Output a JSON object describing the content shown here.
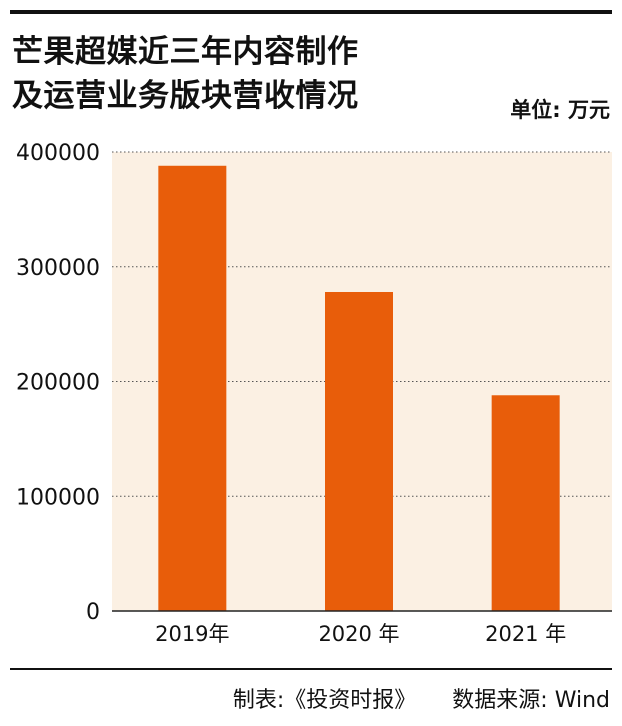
{
  "header": {
    "title_line1": "芒果超媒近三年内容制作",
    "title_line2": "及运营业务版块营收情况",
    "unit": "单位: 万元"
  },
  "footer": {
    "made_by": "制表:《投资时报》",
    "source": "数据来源: Wind"
  },
  "colors": {
    "bar": "#e85d0a",
    "plot_bg": "#fbf0e3",
    "grid": "#555555",
    "text": "#111111"
  },
  "chart_data": {
    "type": "bar",
    "title": "芒果超媒近三年内容制作及运营业务版块营收情况",
    "ylabel": "单位: 万元",
    "categories": [
      "2019年",
      "2020 年",
      "2021 年"
    ],
    "values": [
      388000,
      278000,
      188000
    ],
    "yticks": [
      "0",
      "100000",
      "200000",
      "300000",
      "400000"
    ],
    "ylim": [
      0,
      400000
    ],
    "grid": true
  }
}
